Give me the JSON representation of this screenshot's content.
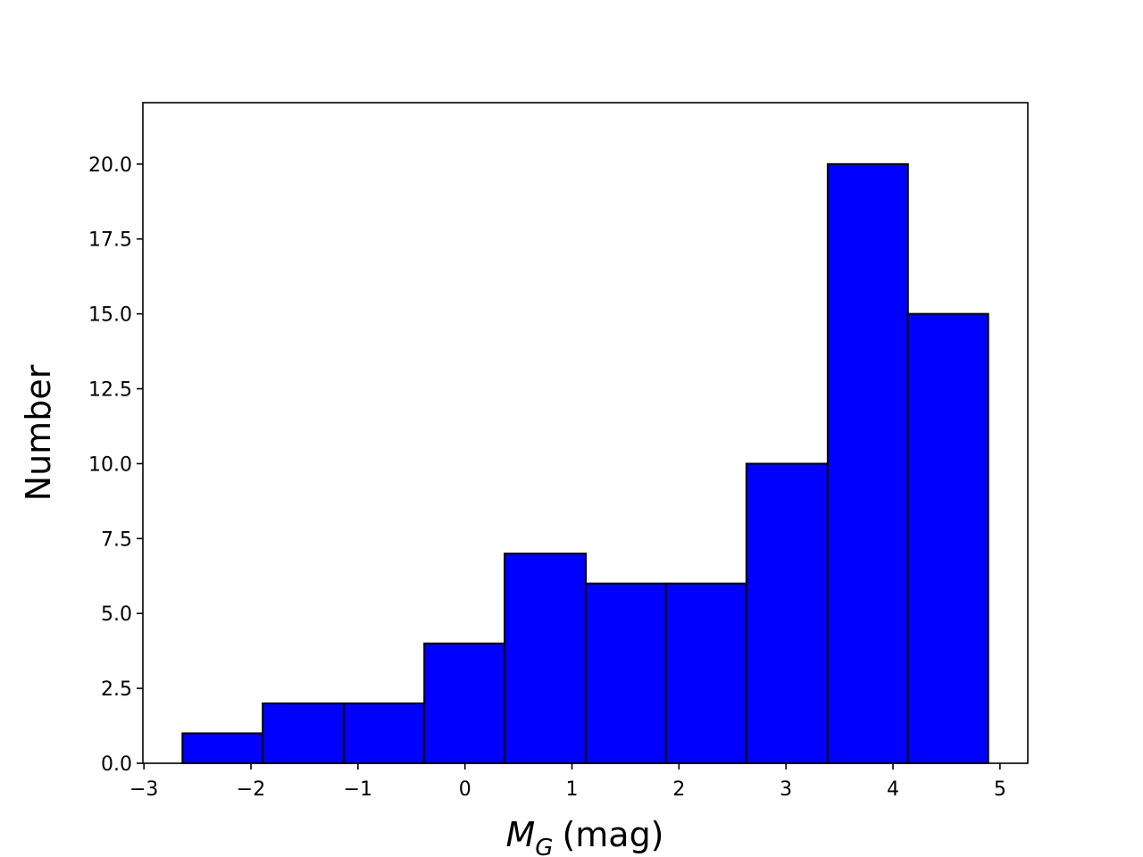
{
  "chart_data": {
    "type": "histogram",
    "xlabel": {
      "symbol": "M",
      "subscript": "G",
      "unit": "(mag)"
    },
    "ylabel": "Number",
    "bins": [
      -2.64,
      -1.89,
      -1.13,
      -0.38,
      0.37,
      1.13,
      1.88,
      2.63,
      3.39,
      4.14,
      4.89
    ],
    "counts": [
      1,
      2,
      2,
      4,
      7,
      6,
      6,
      10,
      20,
      15
    ],
    "color": "#0000ff",
    "edgecolor": "#000000",
    "xlim": [
      -3.01,
      5.26
    ],
    "ylim": [
      0,
      22.05
    ],
    "xticks": [
      {
        "value": -3,
        "label": "−3"
      },
      {
        "value": -2,
        "label": "−2"
      },
      {
        "value": -1,
        "label": "−1"
      },
      0,
      1,
      2,
      3,
      4,
      5
    ],
    "yticks": [
      {
        "value": 0,
        "label": "0.0"
      },
      {
        "value": 2.5,
        "label": "2.5"
      },
      {
        "value": 5,
        "label": "5.0"
      },
      {
        "value": 7.5,
        "label": "7.5"
      },
      {
        "value": 10,
        "label": "10.0"
      },
      {
        "value": 12.5,
        "label": "12.5"
      },
      {
        "value": 15,
        "label": "15.0"
      },
      {
        "value": 17.5,
        "label": "17.5"
      },
      {
        "value": 20,
        "label": "20.0"
      }
    ],
    "grid": false
  }
}
